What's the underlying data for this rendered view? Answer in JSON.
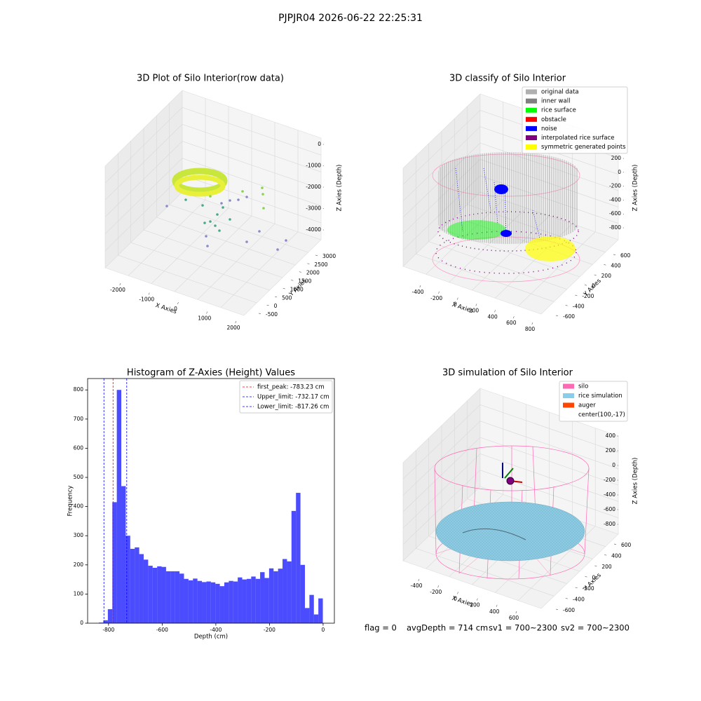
{
  "title": "PJPJR04 2026-06-22 22:25:31",
  "chart_data": [
    {
      "type": "scatter3d",
      "title": "3D Plot of Silo Interior(row data)",
      "xlabel": "X Axies",
      "ylabel": "Y Axies",
      "zlabel": "Z Axies (Depth)",
      "xticks": [
        -2000,
        -1000,
        0,
        1000,
        2000
      ],
      "yticks": [
        -500,
        0,
        500,
        1000,
        1500,
        2000,
        2500,
        3000
      ],
      "zticks": [
        0,
        -1000,
        -2000,
        -3000,
        -4000
      ]
    },
    {
      "type": "scatter3d",
      "title": "3D classify of Silo Interior",
      "xlabel": "X Axies",
      "ylabel": "Y Axies",
      "zlabel": "Z Axies (Depth)",
      "xticks": [
        -400,
        -200,
        0,
        200,
        400,
        600,
        800
      ],
      "yticks": [
        -600,
        -400,
        -200,
        0,
        200,
        400,
        600
      ],
      "zticks": [
        200,
        0,
        -200,
        -400,
        -600,
        -800
      ],
      "legend": [
        {
          "name": "original data",
          "color": "#b0b0b0"
        },
        {
          "name": "inner wall",
          "color": "#808080"
        },
        {
          "name": "rice surface",
          "color": "#00ff00"
        },
        {
          "name": "obstacle",
          "color": "#ff0000"
        },
        {
          "name": "noise",
          "color": "#0000ff"
        },
        {
          "name": "interpolated rice surface",
          "color": "#800080"
        },
        {
          "name": "symmetric generated points",
          "color": "#ffff00"
        }
      ]
    },
    {
      "type": "histogram",
      "title": "Histogram of Z-Axies (Height) Values",
      "xlabel": "Depth (cm)",
      "ylabel": "Frequency",
      "color": "#0000ff",
      "alpha": 0.7,
      "bins": [
        -836.0,
        -819.3,
        -802.6,
        -785.9,
        -769.2,
        -752.5,
        -735.8,
        -719.1,
        -702.4,
        -685.7,
        -669.0,
        -652.3,
        -635.6,
        -618.9,
        -602.2,
        -585.5,
        -568.8,
        -552.1,
        -535.4,
        -518.7,
        -502.0,
        -485.3,
        -468.6,
        -451.9,
        -435.2,
        -418.5,
        -401.8,
        -385.1,
        -368.4,
        -351.7,
        -335.0,
        -318.3,
        -301.6,
        -284.9,
        -268.2,
        -251.5,
        -234.8,
        -218.1,
        -201.4,
        -184.7,
        -168.0,
        -151.3,
        -134.6,
        -117.9,
        -101.2,
        -84.5,
        -67.8,
        -51.1,
        -34.4,
        -17.7,
        -1.0
      ],
      "values": [
        2,
        10,
        48,
        415,
        800,
        470,
        300,
        255,
        260,
        237,
        218,
        197,
        190,
        195,
        193,
        178,
        178,
        178,
        170,
        152,
        147,
        153,
        145,
        141,
        143,
        140,
        135,
        127,
        140,
        145,
        143,
        157,
        150,
        152,
        160,
        152,
        175,
        155,
        188,
        178,
        187,
        220,
        212,
        385,
        447,
        200,
        52,
        97,
        30,
        85
      ],
      "lines": [
        {
          "name": "first_peak: -783.23 cm",
          "value": -783.23,
          "color": "#ff0000"
        },
        {
          "name": "Upper_limit: -732.17 cm",
          "value": -732.17,
          "color": "#0000ff"
        },
        {
          "name": "Lower_limit: -817.26 cm",
          "value": -817.26,
          "color": "#0000ff"
        }
      ],
      "legend": "upper right",
      "xlim": [
        -878,
        42
      ],
      "ylim": [
        0,
        839
      ],
      "xticks": [
        -800,
        -600,
        -400,
        -200,
        0
      ],
      "yticks": [
        0,
        100,
        200,
        300,
        400,
        500,
        600,
        700,
        800
      ]
    },
    {
      "type": "surface3d",
      "title": "3D simulation of Silo Interior",
      "xlabel": "X Axies",
      "ylabel": "Y Axies",
      "zlabel": "Z Axies (Depth)",
      "xticks": [
        -400,
        -200,
        0,
        200,
        400,
        600
      ],
      "yticks": [
        -600,
        -400,
        -200,
        0,
        200,
        400,
        600
      ],
      "zticks": [
        400,
        200,
        0,
        -200,
        -400,
        -600,
        -800
      ],
      "legend": [
        {
          "name": "silo",
          "color": "#ff69b4"
        },
        {
          "name": "rice simulation",
          "color": "#87ceeb"
        },
        {
          "name": "auger",
          "color": "#ff4500"
        },
        {
          "name": "center(100,-17)"
        }
      ]
    }
  ],
  "annotations": [
    "flag = 0",
    "avgDepth = 714 cm",
    "sv1 = 700~2300",
    "sv2 = 700~2300"
  ]
}
